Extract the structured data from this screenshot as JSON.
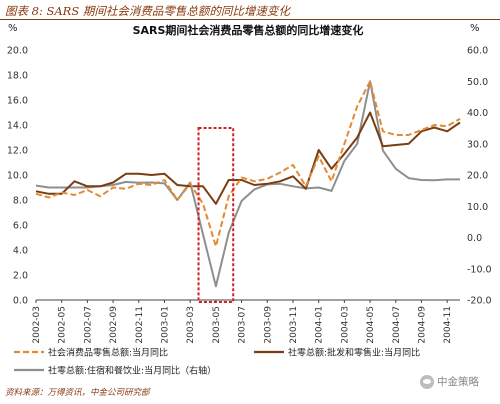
{
  "figure": {
    "caption": "图表 8: SARS 期间社会消费品零售总额的同比增速变化",
    "source_note": "资料来源：万得资讯，中金公司研究部",
    "watermark": "中金策略",
    "colors": {
      "caption": "#8a3a10",
      "series_total": "#e28a34",
      "series_wholesale": "#7a3d12",
      "series_hospitality": "#8f8f8f",
      "highlight_box": "#d02020"
    }
  },
  "chart_data": {
    "type": "line",
    "title": "SARS期间社会消费品零售总额的同比增速变化",
    "left_axis": {
      "unit": "%",
      "min": 0,
      "max": 20,
      "ticks": [
        "0.0",
        "2.0",
        "4.0",
        "6.0",
        "8.0",
        "10.0",
        "12.0",
        "14.0",
        "16.0",
        "18.0",
        "20.0"
      ]
    },
    "right_axis": {
      "unit": "%",
      "min": -20,
      "max": 60,
      "ticks": [
        "-20.0",
        "-10.0",
        "0.0",
        "10.0",
        "20.0",
        "30.0",
        "40.0",
        "50.0",
        "60.0"
      ]
    },
    "x": [
      "2002-03",
      "2002-04",
      "2002-05",
      "2002-06",
      "2002-07",
      "2002-08",
      "2002-09",
      "2002-10",
      "2002-11",
      "2002-12",
      "2003-01",
      "2003-02",
      "2003-03",
      "2003-04",
      "2003-05",
      "2003-06",
      "2003-07",
      "2003-08",
      "2003-09",
      "2003-10",
      "2003-11",
      "2003-12",
      "2004-01",
      "2004-02",
      "2004-03",
      "2004-04",
      "2004-05",
      "2004-06",
      "2004-07",
      "2004-08",
      "2004-09",
      "2004-10",
      "2004-11",
      "2004-12"
    ],
    "x_tick_labels": [
      "2002-03",
      "2002-05",
      "2002-07",
      "2002-09",
      "2002-11",
      "2003-01",
      "2003-03",
      "2003-05",
      "2003-07",
      "2003-09",
      "2003-11",
      "2004-01",
      "2004-03",
      "2004-05",
      "2004-07",
      "2004-09",
      "2004-11"
    ],
    "series": [
      {
        "name": "社会消费品零售总额:当月同比",
        "axis": "left",
        "style": "dashed",
        "values": [
          8.5,
          8.2,
          8.6,
          8.4,
          8.8,
          8.3,
          9.0,
          8.9,
          9.3,
          9.2,
          9.6,
          8.0,
          9.3,
          7.7,
          4.3,
          8.3,
          9.8,
          9.5,
          9.7,
          10.2,
          10.8,
          9.1,
          11.5,
          9.5,
          12.5,
          15.5,
          17.5,
          13.5,
          13.2,
          13.2,
          13.6,
          14.0,
          13.9,
          14.5
        ]
      },
      {
        "name": "社零总额:批发和零售业:当月同比",
        "axis": "left",
        "style": "solid",
        "values": [
          8.7,
          8.5,
          8.5,
          9.5,
          9.1,
          9.1,
          9.4,
          10.1,
          10.1,
          10.0,
          10.1,
          9.2,
          9.1,
          9.1,
          7.7,
          9.6,
          9.6,
          9.2,
          9.3,
          9.5,
          9.9,
          8.9,
          12.0,
          10.5,
          11.7,
          13.0,
          15.0,
          12.3,
          12.4,
          12.5,
          13.5,
          13.8,
          13.5,
          14.2
        ]
      },
      {
        "name": "社零总额:住宿和餐饮业:当月同比（右轴）",
        "axis": "right",
        "style": "solid",
        "values": [
          16.6,
          16.0,
          16.0,
          16.0,
          16.0,
          16.4,
          16.8,
          17.8,
          17.5,
          17.6,
          17.3,
          12.0,
          17.6,
          1.0,
          -15.6,
          1.5,
          11.7,
          15.4,
          17.0,
          17.2,
          16.4,
          15.7,
          16.0,
          14.9,
          24.5,
          30.0,
          50.0,
          27.8,
          22.0,
          19.0,
          18.4,
          18.3,
          18.6,
          18.6
        ]
      }
    ],
    "highlight": {
      "from": "2003-04",
      "to": "2003-06"
    },
    "legend_position": "bottom",
    "grid": false
  }
}
